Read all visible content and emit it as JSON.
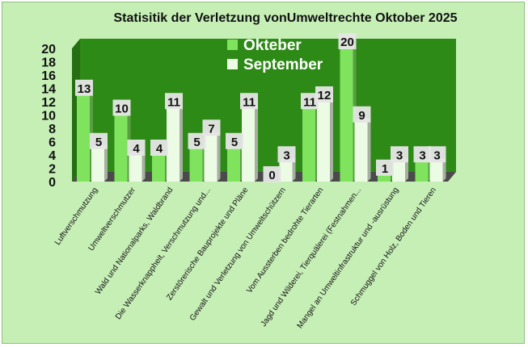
{
  "chart_data": {
    "type": "bar",
    "title": "Statisitik der Verletzung vonUmweltrechte Oktober 2025",
    "categories": [
      "Luftverschmutzung",
      "Umweltverschmutzer",
      "Wald und Nationalparks, Waldbrand",
      "Die Wasserknappheit, Verschmutzung und...",
      "Zerstörerische Bauprojekte und Pläne",
      "Gewalt und Verletzung von Umweltschützern",
      "Vom Aussterben bedrohte Tierarten",
      "Jagd und Wilderei, Tierquälerei (Festnahmen...",
      "Mangel an Umweltinfrastruktur und -ausrüstung",
      "Schmuggel von Holz, Boden und Tieren"
    ],
    "series": [
      {
        "name": "Okteber",
        "values": [
          13,
          10,
          4,
          5,
          5,
          0,
          11,
          20,
          1,
          3
        ],
        "color": "#7fe35e"
      },
      {
        "name": "September",
        "values": [
          5,
          4,
          11,
          7,
          11,
          3,
          12,
          9,
          3,
          3
        ],
        "color": "#ecfbe4"
      }
    ],
    "y_ticks": [
      "0",
      "2",
      "4",
      "6",
      "8",
      "10",
      "12",
      "14",
      "16",
      "18",
      "20"
    ],
    "ylim": [
      0,
      20
    ],
    "grid": false,
    "legend_position": "top",
    "colors": {
      "background": "#c6efb6",
      "back_wall": "#2e8a16",
      "floor": "#4a4a4a"
    }
  }
}
